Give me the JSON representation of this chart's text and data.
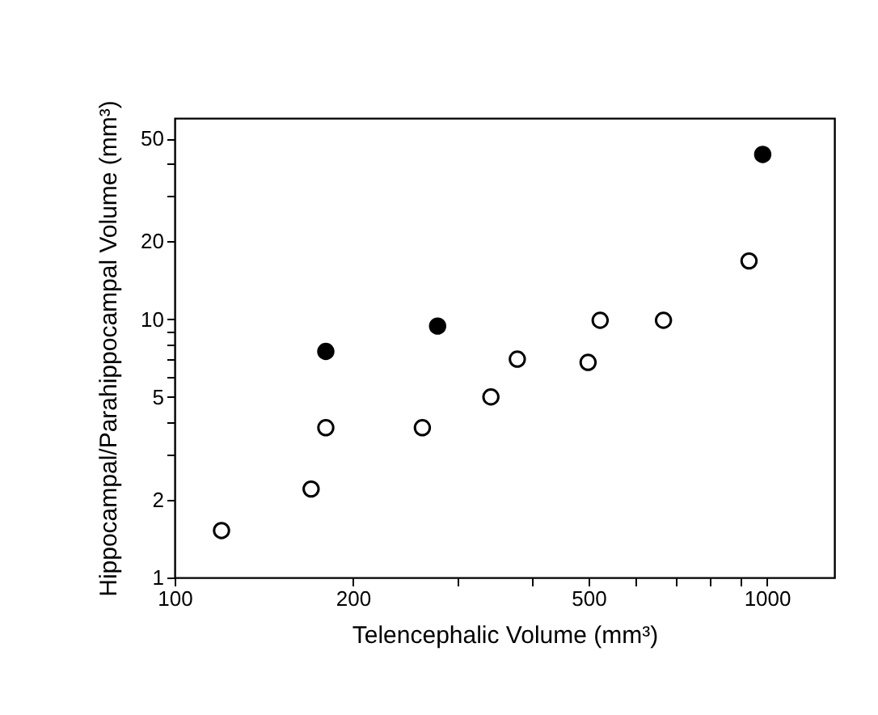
{
  "chart_data": {
    "type": "scatter",
    "xlabel": "Telencephalic Volume (mm³)",
    "ylabel": "Hippocampal/Parahippocampal Volume (mm³)",
    "log": "xy",
    "xlim": [
      100,
      1300
    ],
    "ylim": [
      1,
      60
    ],
    "xticks": [
      100,
      200,
      {
        "value": 300,
        "label": null
      },
      {
        "value": 400,
        "label": null
      },
      500,
      {
        "value": 600,
        "label": null
      },
      {
        "value": 700,
        "label": null
      },
      {
        "value": 800,
        "label": null
      },
      {
        "value": 900,
        "label": null
      },
      1000
    ],
    "yticks": [
      1,
      2,
      {
        "value": 3,
        "label": null
      },
      {
        "value": 4,
        "label": null
      },
      5,
      {
        "value": 6,
        "label": null
      },
      {
        "value": 7,
        "label": null
      },
      {
        "value": 8,
        "label": null
      },
      {
        "value": 9,
        "label": null
      },
      10,
      20,
      {
        "value": 30,
        "label": null
      },
      {
        "value": 40,
        "label": null
      },
      50
    ],
    "grid": false,
    "marker": "circle",
    "series": [
      {
        "color": "#000000",
        "x": [
          180,
          278,
          984
        ],
        "values": [
          7.5,
          9.4,
          43.4
        ]
      },
      {
        "color": "#ffffff",
        "x": [
          120,
          170,
          180,
          262,
          342,
          379,
          499,
          523,
          669,
          933
        ],
        "values": [
          1.52,
          2.2,
          3.8,
          3.8,
          5.0,
          7.0,
          6.8,
          9.9,
          9.9,
          16.8
        ]
      }
    ]
  }
}
